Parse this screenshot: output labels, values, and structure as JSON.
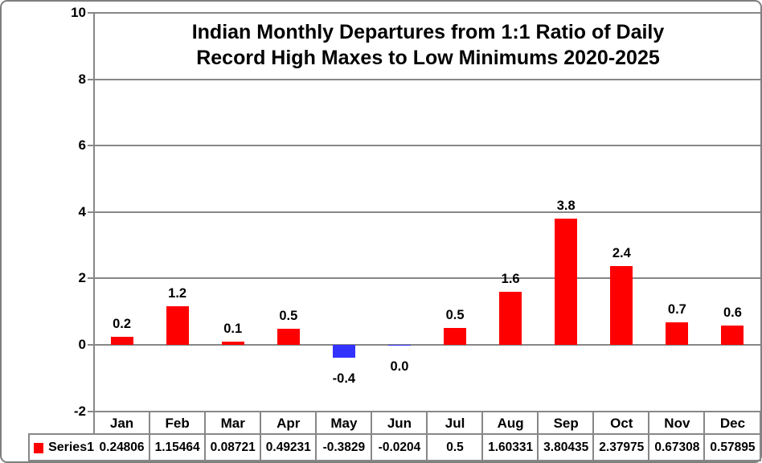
{
  "chart_data": {
    "type": "bar",
    "title_line1": "Indian Monthly Departures from 1:1 Ratio of Daily",
    "title_line2": "Record High Maxes to Low Minimums 2020-2025",
    "xlabel": "",
    "ylabel": "",
    "ylim": [
      -2,
      10
    ],
    "yticks": [
      10,
      8,
      6,
      4,
      2,
      0,
      -2
    ],
    "grid": "horizontal gridlines on",
    "legend_position": "data-table key at bottom left",
    "categories": [
      "Jan",
      "Feb",
      "Mar",
      "Apr",
      "May",
      "Jun",
      "Jul",
      "Aug",
      "Sep",
      "Oct",
      "Nov",
      "Dec"
    ],
    "series": [
      {
        "name": "Series1",
        "values": [
          0.24806,
          1.15464,
          0.08721,
          0.49231,
          -0.3829,
          -0.0204,
          0.5,
          1.60331,
          3.80435,
          2.37975,
          0.67308,
          0.57895
        ],
        "table_values": [
          "0.24806",
          "1.15464",
          "0.08721",
          "0.49231",
          "-0.3829",
          "-0.0204",
          "0.5",
          "1.60331",
          "3.80435",
          "2.37975",
          "0.67308",
          "0.57895"
        ],
        "bar_labels": [
          "0.2",
          "1.2",
          "0.1",
          "0.5",
          "-0.4",
          "0.0",
          "0.5",
          "1.6",
          "3.8",
          "2.4",
          "0.7",
          "0.6"
        ]
      }
    ],
    "colors": {
      "positive_bar": "#ff0000",
      "negative_bar": "#3333ff",
      "gridline": "#878787",
      "text": "#000000",
      "frame_border": "#7f7f7f"
    }
  }
}
